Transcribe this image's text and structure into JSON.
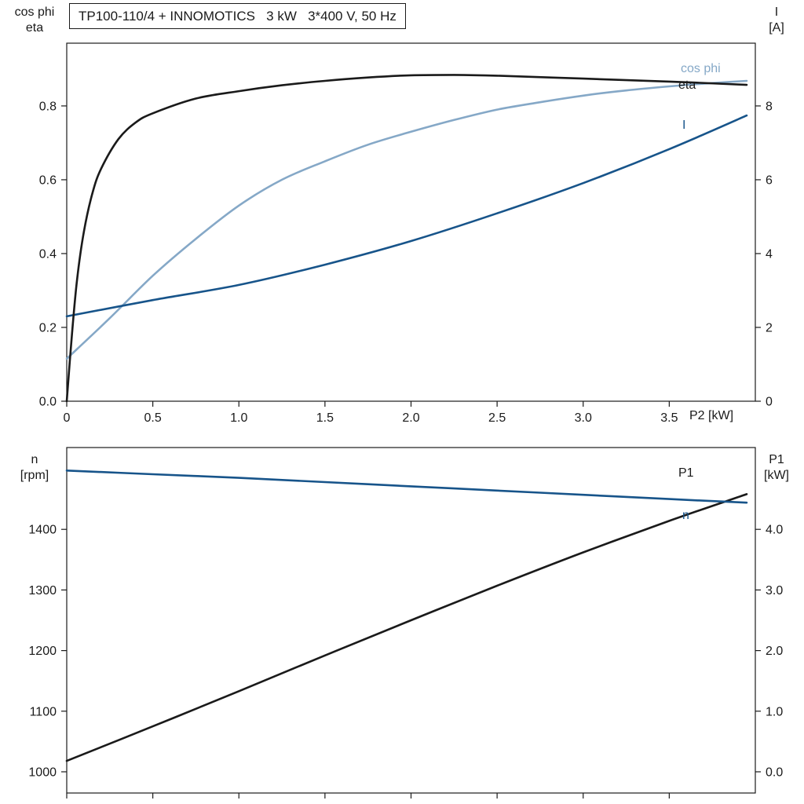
{
  "title": "TP100-110/4 + INNOMOTICS   3 kW   3*400 V, 50 Hz",
  "colors": {
    "black": "#1a1a1a",
    "dark_blue": "#17548a",
    "light_blue": "#85a8c7",
    "axis": "#1a1a1a"
  },
  "top_chart": {
    "left_axis_line1": "cos phi",
    "left_axis_line2": "eta",
    "right_axis_line1": "I",
    "right_axis_line2": "[A]",
    "x_axis_label": "P2 [kW]"
  },
  "bottom_chart": {
    "left_axis_line1": "n",
    "left_axis_line2": "[rpm]",
    "right_axis_line1": "P1",
    "right_axis_line2": "[kW]"
  },
  "chart_data": [
    {
      "id": "top",
      "type": "line",
      "title": "TP100-110/4 + INNOMOTICS   3 kW   3*400 V, 50 Hz",
      "xlabel": "P2 [kW]",
      "ylabel_left": "cos phi / eta",
      "ylabel_right": "I [A]",
      "xlim": [
        0,
        4.0
      ],
      "ylim_left": [
        0,
        0.97
      ],
      "ylim_right": [
        0,
        9.7
      ],
      "grid": false,
      "legend": "inline-right",
      "xticks": {
        "values": [
          0,
          0.5,
          1.0,
          1.5,
          2.0,
          2.5,
          3.0,
          3.5
        ],
        "labels": [
          "0",
          "0.5",
          "1.0",
          "1.5",
          "2.0",
          "2.5",
          "3.0",
          "3.5"
        ]
      },
      "yticks_left": {
        "values": [
          0.0,
          0.2,
          0.4,
          0.6,
          0.8
        ],
        "labels": [
          "0.0",
          "0.2",
          "0.4",
          "0.6",
          "0.8"
        ]
      },
      "yticks_right": {
        "values": [
          0,
          2,
          4,
          6,
          8
        ],
        "labels": [
          "0",
          "2",
          "4",
          "6",
          "8"
        ]
      },
      "series": [
        {
          "name": "cos phi",
          "axis": "left",
          "color": "light_blue",
          "x": [
            0,
            0.25,
            0.5,
            0.75,
            1.0,
            1.25,
            1.5,
            1.75,
            2.0,
            2.25,
            2.5,
            2.75,
            3.0,
            3.25,
            3.5,
            3.75,
            3.95
          ],
          "y": [
            0.115,
            0.225,
            0.34,
            0.44,
            0.53,
            0.6,
            0.65,
            0.695,
            0.73,
            0.762,
            0.79,
            0.81,
            0.828,
            0.842,
            0.853,
            0.862,
            0.868
          ]
        },
        {
          "name": "I",
          "axis": "right",
          "color": "dark_blue",
          "x": [
            0,
            0.5,
            1.0,
            1.5,
            2.0,
            2.5,
            3.0,
            3.5,
            3.95
          ],
          "y": [
            2.3,
            2.74,
            3.15,
            3.7,
            4.34,
            5.09,
            5.91,
            6.83,
            7.74
          ]
        },
        {
          "name": "eta",
          "axis": "left",
          "color": "black",
          "x": [
            0,
            0.03,
            0.06,
            0.1,
            0.15,
            0.2,
            0.3,
            0.4,
            0.5,
            0.75,
            1.0,
            1.25,
            1.5,
            1.75,
            2.0,
            2.25,
            2.5,
            3.0,
            3.5,
            3.95
          ],
          "y": [
            0,
            0.18,
            0.33,
            0.46,
            0.565,
            0.63,
            0.71,
            0.755,
            0.78,
            0.82,
            0.84,
            0.856,
            0.868,
            0.877,
            0.883,
            0.884,
            0.882,
            0.874,
            0.866,
            0.857
          ]
        }
      ]
    },
    {
      "id": "bottom",
      "type": "line",
      "title": "",
      "xlabel": "",
      "ylabel_left": "n [rpm]",
      "ylabel_right": "P1 [kW]",
      "xlim": [
        0,
        4.0
      ],
      "ylim_left": [
        965,
        1535
      ],
      "ylim_right": [
        -0.35,
        5.35
      ],
      "grid": false,
      "legend": "inline-right",
      "xticks": {
        "values": [
          0,
          0.5,
          1.0,
          1.5,
          2.0,
          2.5,
          3.0,
          3.5
        ],
        "labels": []
      },
      "yticks_left": {
        "values": [
          1000,
          1100,
          1200,
          1300,
          1400
        ],
        "labels": [
          "1000",
          "1100",
          "1200",
          "1300",
          "1400"
        ]
      },
      "yticks_right": {
        "values": [
          0.0,
          1.0,
          2.0,
          3.0,
          4.0
        ],
        "labels": [
          "0.0",
          "1.0",
          "2.0",
          "3.0",
          "4.0"
        ]
      },
      "series": [
        {
          "name": "P1",
          "axis": "right",
          "color": "black",
          "x": [
            0,
            0.5,
            1.0,
            1.5,
            2.0,
            2.5,
            3.0,
            3.5,
            3.95
          ],
          "y": [
            0.18,
            0.75,
            1.33,
            1.92,
            2.5,
            3.07,
            3.62,
            4.14,
            4.58
          ]
        },
        {
          "name": "n",
          "axis": "left",
          "color": "dark_blue",
          "x": [
            0,
            0.5,
            1.0,
            1.5,
            2.0,
            2.5,
            3.0,
            3.5,
            3.95
          ],
          "y": [
            1497,
            1491,
            1485,
            1478,
            1471,
            1464,
            1457,
            1450,
            1444
          ]
        }
      ]
    }
  ]
}
